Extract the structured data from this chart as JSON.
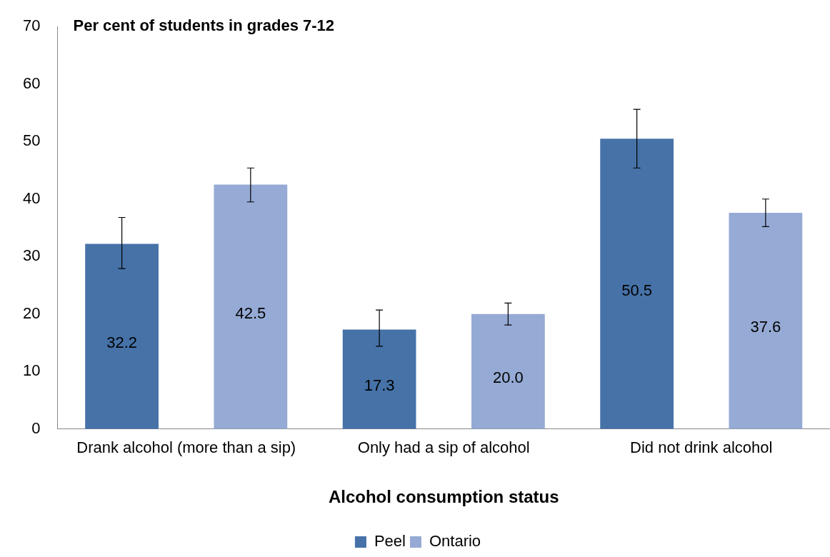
{
  "chart_data": {
    "type": "bar",
    "ylabel": "Per cent of students in grades 7-12",
    "xlabel": "Alcohol consumption status",
    "categories": [
      "Drank alcohol (more than a sip)",
      "Only had a sip of alcohol",
      "Did not drink alcohol"
    ],
    "series": [
      {
        "name": "Peel",
        "color": "#4672a8",
        "values": [
          32.2,
          17.3,
          50.5
        ],
        "value_labels": [
          "32.2",
          "17.3",
          "50.5"
        ],
        "errors": [
          [
            27.9,
            36.8
          ],
          [
            14.4,
            20.7
          ],
          [
            45.4,
            55.6
          ]
        ]
      },
      {
        "name": "Ontario",
        "color": "#95aad4",
        "values": [
          42.5,
          20.0,
          37.6
        ],
        "value_labels": [
          "42.5",
          "20.0",
          "37.6"
        ],
        "errors": [
          [
            39.5,
            45.4
          ],
          [
            18.1,
            21.9
          ],
          [
            35.2,
            40.0
          ]
        ]
      }
    ],
    "ylim": [
      0,
      70
    ],
    "yticks": [
      0,
      10,
      20,
      30,
      40,
      50,
      60,
      70
    ],
    "grid": false,
    "legend": "bottom"
  }
}
